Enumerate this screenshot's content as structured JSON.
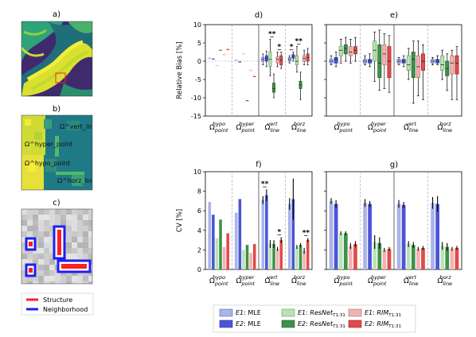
{
  "panel_labels": {
    "a": "a)",
    "b": "b)",
    "c": "c)",
    "d": "d)",
    "e": "e)",
    "f": "f)",
    "g": "g)"
  },
  "legend_left": {
    "structure": "Structure",
    "neighborhood": "Neighborhood"
  },
  "panel_b_labels": [
    "Ω^vert_line",
    "Ω^hyper_point",
    "Ω^hypo_point",
    "Ω^horz_line"
  ],
  "groups": [
    {
      "base": "Ω",
      "sup": "hypo",
      "sub": "point"
    },
    {
      "base": "Ω",
      "sup": "hyper",
      "sub": "point"
    },
    {
      "base": "Ω",
      "sup": "vert",
      "sub": "line"
    },
    {
      "base": "Ω",
      "sup": "horz",
      "sub": "line"
    }
  ],
  "legend": [
    {
      "id": "e1mle",
      "prefix": "E1",
      "method": "MLE",
      "sub": "",
      "italic": false,
      "color": "#a9b4e8",
      "edge": "#5d6bb5"
    },
    {
      "id": "e2mle",
      "prefix": "E2",
      "method": "MLE",
      "sub": "",
      "italic": false,
      "color": "#4a55d6",
      "edge": "#2a33a0"
    },
    {
      "id": "e1res",
      "prefix": "E1",
      "method": "ResNet",
      "sub": "T1:31",
      "italic": true,
      "color": "#b9e3b4",
      "edge": "#5f9e58"
    },
    {
      "id": "e2res",
      "prefix": "E2",
      "method": "ResNet",
      "sub": "T1:31",
      "italic": true,
      "color": "#3f9148",
      "edge": "#245c2b"
    },
    {
      "id": "e1rim",
      "prefix": "E1",
      "method": "RIM",
      "sub": "T1:31",
      "italic": true,
      "color": "#f0b3b3",
      "edge": "#b86b6b"
    },
    {
      "id": "e2rim",
      "prefix": "E2",
      "method": "RIM",
      "sub": "T1:31",
      "italic": true,
      "color": "#e04b4b",
      "edge": "#9e2727"
    }
  ],
  "chart_data": [
    {
      "panel": "d",
      "type": "box",
      "ylabel": "Relative Bias [%]",
      "ylim": [
        -15,
        10
      ],
      "yticks": [
        -15,
        -10,
        -5,
        0,
        5,
        10
      ],
      "grid": false,
      "legend": "shared, below panels f and g",
      "note": "hypo/hyper point groups drawn as short horizontal lines (point estimates)",
      "groups": [
        {
          "left": [
            [
              0.8
            ],
            [
              0.6
            ],
            [
              -1.2
            ],
            [
              3.0
            ],
            [
              1.8
            ],
            [
              3.2
            ]
          ],
          "right": [
            [
              2.2
            ],
            [
              1.0
            ],
            [
              0.5
            ],
            [
              -0.1
            ],
            [
              2.3
            ],
            [
              1.2
            ]
          ],
          "kind": "line"
        },
        {
          "left": [
            [
              0.3
            ],
            [
              -0.2
            ],
            [
              2.0
            ],
            [
              -10.8
            ],
            [
              -2.5
            ],
            [
              -4.2
            ]
          ],
          "right": [
            [
              0.4
            ],
            [
              -0.2
            ],
            [
              0.5
            ],
            [
              -2.0
            ],
            [
              1.4
            ],
            [
              -0.3
            ]
          ],
          "kind": "line"
        },
        {
          "left": [
            [
              -1,
              0,
              0.5,
              1,
              2
            ],
            [
              -1.5,
              0,
              0.8,
              1.5,
              2.8
            ],
            [
              -4,
              -1.5,
              0.5,
              2.5,
              6
            ],
            [
              -10,
              -8.5,
              -7.5,
              -6,
              -3.5
            ],
            [
              -1.5,
              -0.5,
              0.5,
              1.2,
              2.5
            ],
            [
              -2,
              -1,
              0.3,
              1.5,
              2.5
            ]
          ],
          "kind": "box",
          "sig": [
            {
              "between": [
                2,
                3
              ],
              "label": "**"
            },
            {
              "between": [
                4,
                5
              ],
              "label": "*"
            }
          ]
        },
        {
          "left": [
            [
              -0.5,
              0,
              0.5,
              1,
              1.5
            ],
            [
              0,
              0.8,
              1.3,
              1.8,
              2.5
            ],
            [
              -3,
              -1,
              0,
              1.5,
              4
            ],
            [
              -10.5,
              -7.5,
              -6.5,
              -5.5,
              -3
            ],
            [
              -1,
              0,
              0.8,
              1.5,
              3
            ],
            [
              -1,
              0,
              1,
              2,
              3.5
            ]
          ],
          "kind": "box",
          "sig": [
            {
              "between": [
                0,
                1
              ],
              "label": "*"
            },
            {
              "between": [
                2,
                3
              ],
              "label": "**"
            }
          ]
        }
      ]
    },
    {
      "panel": "e",
      "type": "box",
      "ylim": [
        -15,
        10
      ],
      "grid": false,
      "groups": [
        {
          "kind": "box",
          "left": [
            [
              -1,
              -0.5,
              0,
              0.5,
              1.5
            ],
            [
              -1.5,
              -0.5,
              0.5,
              1,
              2.5
            ],
            [
              -0.5,
              1.5,
              3,
              4,
              6
            ],
            [
              0,
              2,
              3.5,
              4.5,
              6.5
            ],
            [
              -0.5,
              1.5,
              2.5,
              4,
              6
            ],
            [
              0,
              2,
              3,
              4,
              6.5
            ]
          ]
        },
        {
          "kind": "box",
          "left": [
            [
              -1,
              -0.5,
              0,
              0.5,
              1.5
            ],
            [
              -1.5,
              -0.5,
              0,
              0.5,
              2
            ],
            [
              -5.5,
              0,
              3,
              5.5,
              8
            ],
            [
              -8,
              -4.5,
              -0.5,
              4.5,
              8.5
            ],
            [
              -7.5,
              -1,
              2,
              4.5,
              7.5
            ],
            [
              -8.5,
              -4.5,
              0,
              4,
              7
            ]
          ]
        },
        {
          "kind": "box",
          "left": [
            [
              -1,
              -0.5,
              0,
              0.5,
              1
            ],
            [
              -1.5,
              -0.5,
              0,
              0.5,
              1.5
            ],
            [
              -5,
              -2.5,
              -1,
              1.5,
              3.5
            ],
            [
              -11.5,
              -4.5,
              0.5,
              2.5,
              5.5
            ],
            [
              -9.5,
              -4.5,
              -1.5,
              1.5,
              5.5
            ],
            [
              -10.5,
              -2.5,
              0,
              2,
              4.5
            ]
          ]
        },
        {
          "kind": "box",
          "left": [
            [
              -1,
              -0.5,
              0,
              0.5,
              1
            ],
            [
              -1,
              -0.5,
              0,
              0.5,
              1.5
            ],
            [
              -5,
              -2.5,
              -1,
              1.5,
              3
            ],
            [
              -8,
              -4,
              -2,
              0,
              2
            ],
            [
              -10.5,
              -3.5,
              -0.5,
              1.5,
              3
            ],
            [
              -10.5,
              -3.5,
              -0.5,
              1.5,
              4
            ]
          ]
        }
      ]
    },
    {
      "panel": "f",
      "type": "bar",
      "ylabel": "CV [%]",
      "ylim": [
        0,
        10
      ],
      "yticks": [
        0,
        2,
        4,
        6,
        8,
        10
      ],
      "grid": false,
      "groups": [
        {
          "values": [
            6.9,
            5.6,
            3.2,
            5.1,
            2.3,
            3.7
          ],
          "err": [
            0,
            0,
            0,
            0,
            0,
            0
          ],
          "kind": "bar"
        },
        {
          "values": [
            5.8,
            7.2,
            2.0,
            2.5,
            1.7,
            2.6
          ],
          "err": [
            0,
            0,
            0,
            0,
            0,
            0
          ],
          "kind": "bar"
        },
        {
          "values": [
            7.1,
            7.6,
            2.6,
            2.6,
            2.1,
            3.0
          ],
          "err": [
            0.4,
            0.6,
            0.4,
            0.4,
            0.2,
            0.3
          ],
          "kind": "bar",
          "sig": [
            {
              "between": [
                0,
                1
              ],
              "label": "**"
            },
            {
              "between": [
                4,
                5
              ],
              "label": "*"
            }
          ]
        },
        {
          "values": [
            6.7,
            7.2,
            2.3,
            2.5,
            1.9,
            3.0
          ],
          "err": [
            0.6,
            2.1,
            0.2,
            0.2,
            0.3,
            0.2
          ],
          "kind": "bar",
          "sig": [
            {
              "between": [
                4,
                5
              ],
              "label": "**"
            }
          ]
        }
      ]
    },
    {
      "panel": "g",
      "type": "bar",
      "ylim": [
        0,
        10
      ],
      "grid": false,
      "groups": [
        {
          "values": [
            7.0,
            6.7,
            3.7,
            3.7,
            2.4,
            2.6
          ],
          "err": [
            0.3,
            0.4,
            0.2,
            0.2,
            0.3,
            0.3
          ],
          "kind": "bar"
        },
        {
          "values": [
            6.8,
            6.7,
            2.8,
            2.7,
            2.0,
            2.1
          ],
          "err": [
            0.4,
            0.3,
            0.7,
            0.6,
            0.2,
            0.2
          ],
          "kind": "bar"
        },
        {
          "values": [
            6.7,
            6.6,
            2.6,
            2.5,
            2.1,
            2.2
          ],
          "err": [
            0.4,
            0.3,
            0.3,
            0.3,
            0.2,
            0.2
          ],
          "kind": "bar"
        },
        {
          "values": [
            6.8,
            6.7,
            2.4,
            2.3,
            2.1,
            2.2
          ],
          "err": [
            0.6,
            0.8,
            0.4,
            0.4,
            0.2,
            0.2
          ],
          "kind": "bar"
        }
      ]
    }
  ]
}
